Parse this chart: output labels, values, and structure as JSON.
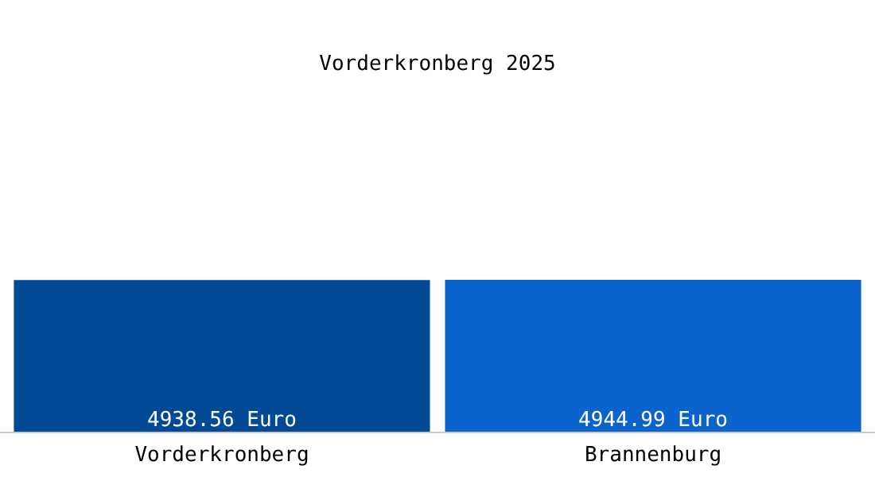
{
  "chart_data": {
    "type": "bar",
    "title": "Vorderkronberg 2025",
    "categories": [
      "Vorderkronberg",
      "Brannenburg"
    ],
    "values": [
      4938.56,
      4944.99
    ],
    "colors": [
      "#034a96",
      "#0a64cc"
    ],
    "value_labels": [
      "4938.56 Euro",
      "4944.99 Euro"
    ],
    "tick_labels": "x"
  }
}
